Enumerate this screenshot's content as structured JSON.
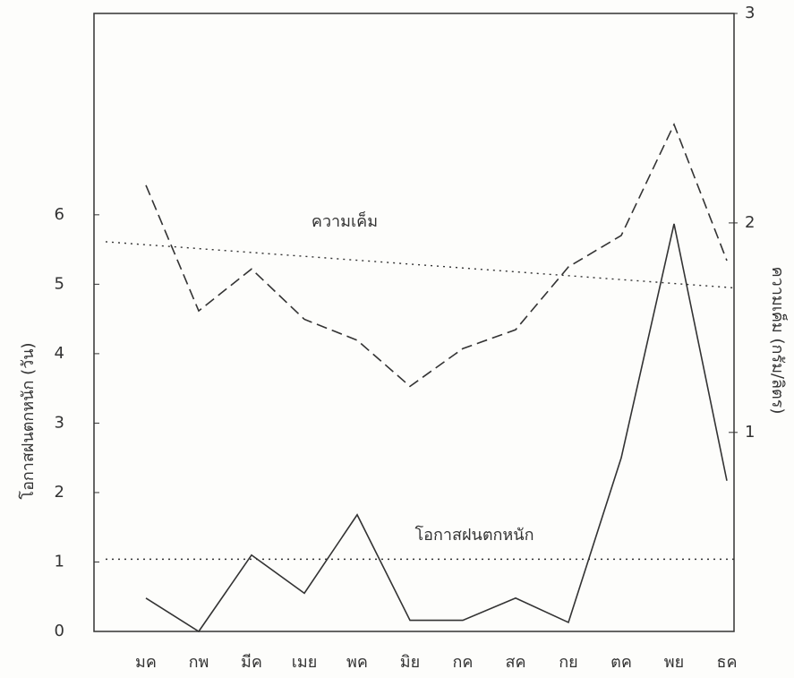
{
  "chart_data": {
    "type": "line",
    "y_label": "โอกาสฝนตกหนัก (วัน)",
    "y2_label": "ความเค็ม (กรัม/ลิตร)",
    "categories": [
      "มค",
      "กพ",
      "มีค",
      "เมย",
      "พค",
      "มิย",
      "กค",
      "สค",
      "กย",
      "ตค",
      "พย",
      "ธค"
    ],
    "series": [
      {
        "name": "ความเค็ม",
        "color": "#333333",
        "dash": "dashed",
        "axis": "y2",
        "values": [
          2.18,
          1.58,
          1.78,
          1.54,
          1.44,
          1.22,
          1.4,
          1.49,
          1.79,
          1.94,
          2.47,
          1.82
        ],
        "trend": [
          1.91,
          1.69
        ]
      },
      {
        "name": "โอกาสฝนตกหนัก",
        "color": "#333333",
        "dash": "solid",
        "values": [
          0.48,
          0,
          1.1,
          0.55,
          1.68,
          0.16,
          0.16,
          0.48,
          0.13,
          2.5,
          5.87,
          2.17
        ],
        "trend": [
          1.04,
          1.04
        ]
      }
    ],
    "ylim": [
      0,
      8.9
    ],
    "yticks": [
      0,
      1,
      2,
      3,
      4,
      5,
      6
    ],
    "y2lim": [
      0.05,
      3
    ],
    "y2ticks": [
      1,
      2,
      3
    ]
  }
}
